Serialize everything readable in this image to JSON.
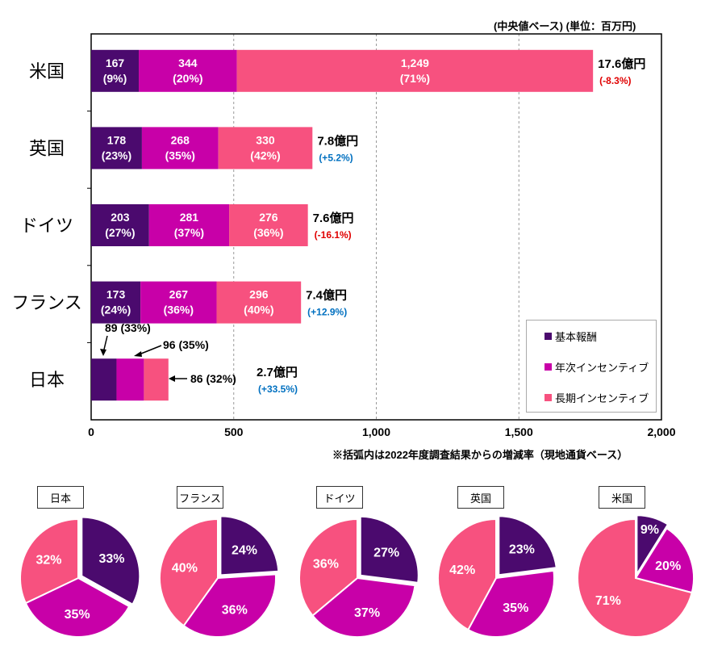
{
  "chart_data": [
    {
      "type": "bar",
      "orientation": "horizontal",
      "stacked": true,
      "unit_note": "(中央値ベース) (単位：百万円)",
      "footnote": "※括弧内は2022年度調査結果からの増減率（現地通貨ベース）",
      "xlim": [
        0,
        2000
      ],
      "xticks": [
        "0",
        "500",
        "1,000",
        "1,500",
        "2,000"
      ],
      "xtick_values": [
        0,
        500,
        1000,
        1500,
        2000
      ],
      "grid": "vertical-dashed",
      "legend_placement": "bottom-right",
      "categories": [
        "米国",
        "英国",
        "ドイツ",
        "フランス",
        "日本"
      ],
      "series": [
        {
          "name": "基本報酬",
          "color": "#4B0A6E",
          "values": [
            167,
            178,
            203,
            173,
            89
          ],
          "labels": [
            "167",
            "178",
            "203",
            "173",
            "89"
          ],
          "pcts": [
            "(9%)",
            "(23%)",
            "(27%)",
            "(24%)",
            "(33%)"
          ]
        },
        {
          "name": "年次インセンティブ",
          "color": "#C800A8",
          "values": [
            344,
            268,
            281,
            267,
            96
          ],
          "labels": [
            "344",
            "268",
            "281",
            "267",
            "96"
          ],
          "pcts": [
            "(20%)",
            "(35%)",
            "(37%)",
            "(36%)",
            "(35%)"
          ]
        },
        {
          "name": "長期インセンティブ",
          "color": "#F7517F",
          "values": [
            1249,
            330,
            276,
            296,
            86
          ],
          "labels": [
            "1,249",
            "330",
            "276",
            "296",
            "86"
          ],
          "pcts": [
            "(71%)",
            "(42%)",
            "(36%)",
            "(40%)",
            "(32%)"
          ]
        }
      ],
      "totals": [
        "17.6億円",
        "7.8億円",
        "7.6億円",
        "7.4億円",
        "2.7億円"
      ],
      "changes": [
        "(-8.3%)",
        "(+5.2%)",
        "(-16.1%)",
        "(+12.9%)",
        "(+33.5%)"
      ],
      "change_colors": [
        "#E00000",
        "#0070C0",
        "#E00000",
        "#0070C0",
        "#0070C0"
      ],
      "japan_callouts": [
        "89 (33%)",
        "96 (35%)",
        "86 (32%)"
      ]
    },
    {
      "type": "pie",
      "series_names": [
        "基本報酬",
        "年次インセンティブ",
        "長期インセンティブ"
      ],
      "colors": [
        "#4B0A6E",
        "#C800A8",
        "#F7517F"
      ],
      "pies": [
        {
          "title": "日本",
          "values": [
            33,
            35,
            32
          ],
          "labels": [
            "33%",
            "35%",
            "32%"
          ]
        },
        {
          "title": "フランス",
          "values": [
            24,
            36,
            40
          ],
          "labels": [
            "24%",
            "36%",
            "40%"
          ]
        },
        {
          "title": "ドイツ",
          "values": [
            27,
            37,
            36
          ],
          "labels": [
            "27%",
            "37%",
            "36%"
          ]
        },
        {
          "title": "英国",
          "values": [
            23,
            35,
            42
          ],
          "labels": [
            "23%",
            "35%",
            "42%"
          ]
        },
        {
          "title": "米国",
          "values": [
            9,
            20,
            71
          ],
          "labels": [
            "9%",
            "20%",
            "71%"
          ]
        }
      ]
    }
  ]
}
